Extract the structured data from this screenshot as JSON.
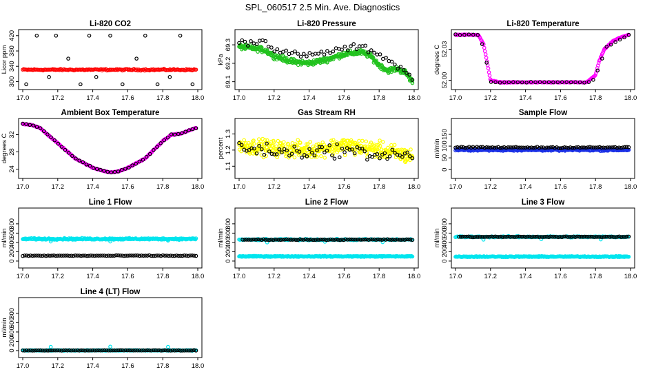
{
  "figure": {
    "title": "SPL_060517  2.5 Min. Ave. Diagnostics",
    "colors": {
      "black": "#000000",
      "red": "#ff0000",
      "green": "#22c21e",
      "magenta": "#ff00ff",
      "yellow": "#ffff00",
      "blue": "#1b30e6",
      "cyan": "#00e5ee"
    }
  },
  "chart_data": [
    {
      "type": "scatter",
      "title": "Li-820 CO2",
      "ylabel": "Licor ppm",
      "xlim": [
        17.0,
        18.0
      ],
      "ylim": [
        290,
        425
      ],
      "xticks": [
        17.0,
        17.2,
        17.4,
        17.6,
        17.8,
        18.0
      ],
      "yticks": [
        300,
        340,
        380,
        420
      ],
      "series": [
        {
          "kind": "band",
          "x0": 17.0,
          "x1": 17.99,
          "center": 331,
          "width": 3,
          "color": "red",
          "points": 180
        },
        {
          "kind": "points",
          "color": "black",
          "x": [
            17.02,
            17.08,
            17.15,
            17.19,
            17.26,
            17.33,
            17.38,
            17.42,
            17.5,
            17.57,
            17.65,
            17.7,
            17.77,
            17.84,
            17.9,
            17.97
          ],
          "y": [
            293,
            420,
            312,
            420,
            360,
            293,
            420,
            312,
            420,
            293,
            360,
            420,
            293,
            312,
            420,
            293
          ]
        }
      ]
    },
    {
      "type": "scatter",
      "title": "Li-820 Pressure",
      "ylabel": "kPa",
      "xlim": [
        17.0,
        18.0
      ],
      "ylim": [
        69.08,
        69.36
      ],
      "xticks": [
        17.0,
        17.2,
        17.4,
        17.6,
        17.8,
        18.0
      ],
      "yticks": [
        69.1,
        69.2,
        69.3
      ],
      "series": [
        {
          "kind": "band",
          "color": "green",
          "points": 400,
          "spread": 0.02,
          "x": [
            17.0,
            17.1,
            17.15,
            17.2,
            17.3,
            17.4,
            17.5,
            17.6,
            17.7,
            17.75,
            17.8,
            17.85,
            17.9,
            17.95,
            17.99
          ],
          "y": [
            69.29,
            69.28,
            69.27,
            69.24,
            69.21,
            69.2,
            69.22,
            69.25,
            69.26,
            69.24,
            69.19,
            69.16,
            69.17,
            69.15,
            69.1
          ]
        },
        {
          "kind": "curve",
          "color": "black",
          "points": 60,
          "spread": 0.025,
          "x": [
            17.0,
            17.15,
            17.2,
            17.3,
            17.4,
            17.5,
            17.6,
            17.7,
            17.8,
            17.9,
            17.99
          ],
          "y": [
            69.31,
            69.32,
            69.28,
            69.25,
            69.24,
            69.26,
            69.28,
            69.29,
            69.25,
            69.19,
            69.12
          ]
        }
      ]
    },
    {
      "type": "scatter",
      "title": "Li-820 Temperature",
      "ylabel": "degrees C",
      "xlim": [
        17.0,
        18.0
      ],
      "ylim": [
        51.995,
        52.045
      ],
      "xticks": [
        17.0,
        17.2,
        17.4,
        17.6,
        17.8,
        18.0
      ],
      "yticks": [
        52.0,
        52.03
      ],
      "series": [
        {
          "kind": "curve",
          "color": "magenta",
          "points": 260,
          "spread": 0.0005,
          "x": [
            17.0,
            17.13,
            17.16,
            17.18,
            17.2,
            17.25,
            17.5,
            17.75,
            17.8,
            17.82,
            17.85,
            17.9,
            17.95,
            17.99
          ],
          "y": [
            52.044,
            52.044,
            52.035,
            52.018,
            52.0,
            51.998,
            51.998,
            51.998,
            52.005,
            52.018,
            52.03,
            52.038,
            52.042,
            52.044
          ]
        },
        {
          "kind": "curve",
          "color": "black",
          "points": 40,
          "spread": 0.0005,
          "x": [
            17.0,
            17.14,
            17.18,
            17.2,
            17.5,
            17.78,
            17.82,
            17.86,
            17.99
          ],
          "y": [
            52.044,
            52.044,
            52.015,
            51.998,
            51.998,
            51.998,
            52.012,
            52.032,
            52.044
          ]
        }
      ]
    },
    {
      "type": "scatter",
      "title": "Ambient Box Temperature",
      "ylabel": "degrees C",
      "xlim": [
        17.0,
        18.0
      ],
      "ylim": [
        22.8,
        34.8
      ],
      "xticks": [
        17.0,
        17.2,
        17.4,
        17.6,
        17.8,
        18.0
      ],
      "yticks": [
        24,
        28,
        32
      ],
      "series": [
        {
          "kind": "curve",
          "color": "magenta",
          "points": 260,
          "spread": 0.15,
          "x": [
            17.0,
            17.05,
            17.1,
            17.2,
            17.3,
            17.4,
            17.5,
            17.55,
            17.6,
            17.7,
            17.8,
            17.85,
            17.9,
            17.99
          ],
          "y": [
            34.5,
            34.3,
            33.5,
            30.0,
            26.5,
            24.3,
            23.2,
            23.5,
            24.3,
            26.5,
            30.5,
            32.0,
            32.2,
            33.6
          ]
        },
        {
          "kind": "curve",
          "color": "black",
          "points": 50,
          "spread": 0.15,
          "x": [
            17.0,
            17.05,
            17.1,
            17.2,
            17.3,
            17.4,
            17.5,
            17.55,
            17.6,
            17.7,
            17.8,
            17.85,
            17.9,
            17.99
          ],
          "y": [
            34.5,
            34.3,
            33.5,
            30.0,
            26.5,
            24.3,
            23.2,
            23.5,
            24.3,
            26.5,
            30.5,
            32.0,
            32.2,
            33.6
          ]
        }
      ]
    },
    {
      "type": "scatter",
      "title": "Gas Stream RH",
      "ylabel": "percent",
      "xlim": [
        17.0,
        18.0
      ],
      "ylim": [
        1.05,
        1.37
      ],
      "xticks": [
        17.0,
        17.2,
        17.4,
        17.6,
        17.8,
        18.0
      ],
      "yticks": [
        1.1,
        1.2,
        1.3
      ],
      "series": [
        {
          "kind": "cloud",
          "color": "yellow",
          "points": 420,
          "spread": 0.06,
          "x": [
            17.0,
            17.2,
            17.4,
            17.6,
            17.8,
            17.99
          ],
          "y": [
            1.23,
            1.21,
            1.2,
            1.23,
            1.2,
            1.16
          ]
        },
        {
          "kind": "cloud",
          "color": "black",
          "points": 70,
          "spread": 0.05,
          "x": [
            17.0,
            17.2,
            17.4,
            17.6,
            17.8,
            17.99
          ],
          "y": [
            1.22,
            1.19,
            1.19,
            1.2,
            1.17,
            1.17
          ]
        }
      ]
    },
    {
      "type": "scatter",
      "title": "Sample Flow",
      "ylabel": "ml/min",
      "xlim": [
        17.0,
        18.0
      ],
      "ylim": [
        -20,
        200
      ],
      "xticks": [
        17.0,
        17.2,
        17.4,
        17.6,
        17.8,
        18.0
      ],
      "yticks": [
        0,
        50,
        100,
        150
      ],
      "series": [
        {
          "kind": "band",
          "x0": 17.0,
          "x1": 17.99,
          "center": 84,
          "width": 6,
          "color": "blue",
          "points": 300
        },
        {
          "kind": "band",
          "x0": 17.0,
          "x1": 17.99,
          "center": 94,
          "width": 4,
          "color": "black",
          "points": 90
        }
      ]
    },
    {
      "type": "scatter",
      "title": "Line 1 Flow",
      "ylabel": "ml/min",
      "xlim": [
        17.0,
        18.0
      ],
      "ylim": [
        -60,
        1050
      ],
      "xticks": [
        17.0,
        17.2,
        17.4,
        17.6,
        17.8,
        18.0
      ],
      "yticks": [
        0,
        200,
        400,
        600,
        800
      ],
      "series": [
        {
          "kind": "band",
          "x0": 17.0,
          "x1": 17.99,
          "center": 475,
          "width": 25,
          "color": "cyan",
          "points": 300
        },
        {
          "kind": "points",
          "color": "cyan",
          "x": [
            17.16,
            17.5,
            17.83
          ],
          "y": [
            420,
            420,
            440
          ]
        },
        {
          "kind": "band",
          "x0": 17.0,
          "x1": 17.99,
          "center": 115,
          "width": 12,
          "color": "black",
          "points": 90
        }
      ]
    },
    {
      "type": "scatter",
      "title": "Line 2 Flow",
      "ylabel": "ml/min",
      "xlim": [
        17.0,
        18.0
      ],
      "ylim": [
        -60,
        1050
      ],
      "xticks": [
        17.0,
        17.2,
        17.4,
        17.6,
        17.8,
        18.0
      ],
      "yticks": [
        0,
        200,
        400,
        600,
        800
      ],
      "series": [
        {
          "kind": "band",
          "x0": 17.0,
          "x1": 17.99,
          "center": 460,
          "width": 20,
          "color": "cyan",
          "points": 200
        },
        {
          "kind": "points",
          "color": "cyan",
          "x": [
            17.16,
            17.49,
            17.82
          ],
          "y": [
            400,
            415,
            405
          ]
        },
        {
          "kind": "band",
          "x0": 17.0,
          "x1": 17.99,
          "center": 100,
          "width": 15,
          "color": "cyan",
          "points": 300
        },
        {
          "kind": "band",
          "x0": 17.02,
          "x1": 17.99,
          "center": 460,
          "width": 12,
          "color": "black",
          "points": 90
        }
      ]
    },
    {
      "type": "scatter",
      "title": "Line 3 Flow",
      "ylabel": "ml/min",
      "xlim": [
        17.0,
        18.0
      ],
      "ylim": [
        -60,
        1050
      ],
      "xticks": [
        17.0,
        17.2,
        17.4,
        17.6,
        17.8,
        18.0
      ],
      "yticks": [
        0,
        200,
        400,
        600,
        800
      ],
      "series": [
        {
          "kind": "band",
          "x0": 17.0,
          "x1": 17.99,
          "center": 520,
          "width": 20,
          "color": "cyan",
          "points": 200
        },
        {
          "kind": "points",
          "color": "cyan",
          "x": [
            17.16,
            17.49,
            17.83
          ],
          "y": [
            460,
            470,
            465
          ]
        },
        {
          "kind": "band",
          "x0": 17.0,
          "x1": 17.99,
          "center": 95,
          "width": 15,
          "color": "cyan",
          "points": 300
        },
        {
          "kind": "band",
          "x0": 17.02,
          "x1": 17.99,
          "center": 520,
          "width": 12,
          "color": "black",
          "points": 90
        }
      ]
    },
    {
      "type": "scatter",
      "title": "Line 4 (LT) Flow",
      "ylabel": "ml/min",
      "xlim": [
        17.0,
        18.0
      ],
      "ylim": [
        -60,
        1050
      ],
      "xticks": [
        17.0,
        17.2,
        17.4,
        17.6,
        17.8,
        18.0
      ],
      "yticks": [
        0,
        200,
        400,
        600,
        800
      ],
      "series": [
        {
          "kind": "band",
          "x0": 17.0,
          "x1": 17.99,
          "center": 5,
          "width": 10,
          "color": "cyan",
          "points": 250
        },
        {
          "kind": "points",
          "color": "cyan",
          "x": [
            17.16,
            17.5,
            17.83
          ],
          "y": [
            80,
            85,
            80
          ]
        },
        {
          "kind": "band",
          "x0": 17.0,
          "x1": 17.99,
          "center": 5,
          "width": 8,
          "color": "black",
          "points": 90
        }
      ]
    }
  ]
}
